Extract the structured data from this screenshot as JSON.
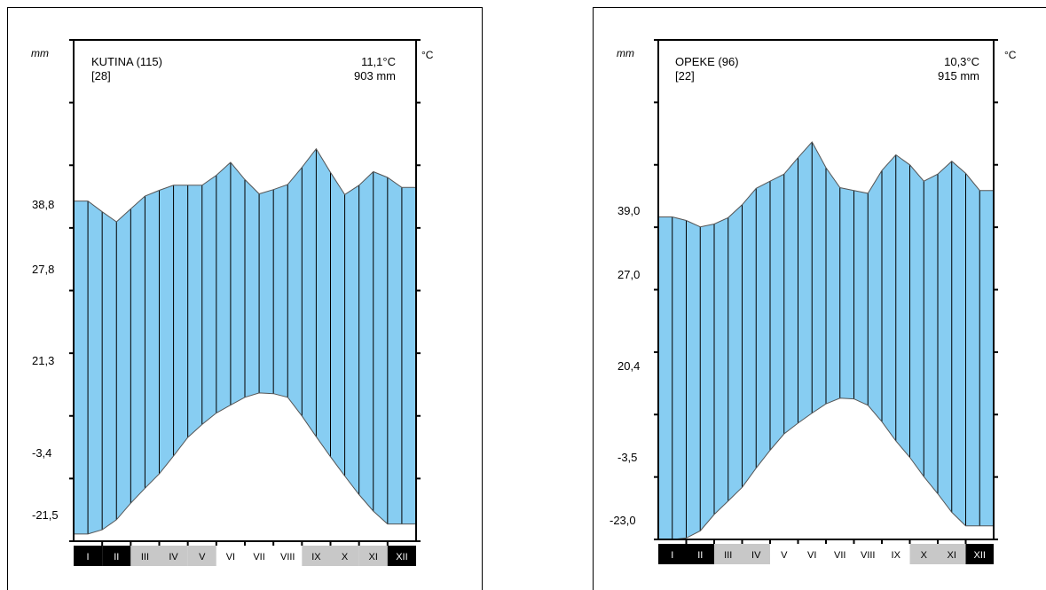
{
  "chart_data": [
    {
      "type": "area",
      "station": "KUTINA (115)",
      "years": "[28]",
      "mean_temp": "11,1°C",
      "annual_precip": "903 mm",
      "left_unit": "mm",
      "right_unit": "°C",
      "left_ticks": [
        "38,8",
        "27,8",
        "21,3",
        "-3,4",
        "-21,5"
      ],
      "months": [
        "I",
        "II",
        "III",
        "IV",
        "V",
        "VI",
        "VII",
        "VIII",
        "IX",
        "X",
        "XI",
        "XII"
      ],
      "month_colors": [
        "#000000",
        "#000000",
        "#c8c8c8",
        "#c8c8c8",
        "#c8c8c8",
        "#ffffff",
        "#ffffff",
        "#ffffff",
        "#c8c8c8",
        "#c8c8c8",
        "#c8c8c8",
        "#000000"
      ],
      "upper_x": [
        0,
        0.5,
        1,
        1.5,
        2,
        2.5,
        3,
        3.5,
        4,
        4.5,
        5,
        5.5,
        6,
        6.5,
        7,
        7.5,
        8,
        8.5,
        9,
        9.5,
        10,
        10.5,
        11,
        11.5,
        12
      ],
      "upper_y": [
        22.5,
        22.5,
        21.0,
        19.6,
        21.4,
        23.2,
        24.0,
        24.7,
        24.7,
        24.7,
        26.1,
        27.9,
        25.5,
        23.5,
        24.1,
        24.8,
        27.2,
        29.8,
        26.5,
        23.4,
        24.7,
        26.6,
        25.8,
        24.4,
        24.4
      ],
      "lower_x": [
        0,
        0.5,
        1,
        1.5,
        2,
        2.5,
        3,
        3.5,
        4,
        4.5,
        5,
        5.5,
        6,
        6.5,
        7,
        7.5,
        8,
        8.5,
        9,
        9.5,
        10,
        10.5,
        11,
        11.5,
        12
      ],
      "lower_y": [
        -24.0,
        -24.0,
        -23.4,
        -22.0,
        -19.7,
        -17.6,
        -15.6,
        -13.1,
        -10.5,
        -8.7,
        -7.1,
        -6.0,
        -4.9,
        -4.3,
        -4.4,
        -4.9,
        -7.5,
        -10.4,
        -13.2,
        -15.9,
        -18.5,
        -20.8,
        -22.6,
        -22.6,
        -22.6
      ],
      "xlim": [
        0,
        12
      ],
      "ylim": [
        -25,
        45
      ]
    },
    {
      "type": "area",
      "station": "OPEKE (96)",
      "years": "[22]",
      "mean_temp": "10,3°C",
      "annual_precip": "915 mm",
      "left_unit": "mm",
      "right_unit": "°C",
      "left_ticks": [
        "39,0",
        "27,0",
        "20,4",
        "-3,5",
        "-23,0"
      ],
      "months": [
        "I",
        "II",
        "III",
        "IV",
        "V",
        "VI",
        "VII",
        "VIII",
        "IX",
        "X",
        "XI",
        "XII"
      ],
      "month_colors": [
        "#000000",
        "#000000",
        "#c8c8c8",
        "#c8c8c8",
        "#ffffff",
        "#ffffff",
        "#ffffff",
        "#ffffff",
        "#ffffff",
        "#c8c8c8",
        "#c8c8c8",
        "#000000"
      ],
      "upper_x": [
        0,
        0.5,
        1,
        1.5,
        2,
        2.5,
        3,
        3.5,
        4,
        4.5,
        5,
        5.5,
        6,
        6.5,
        7,
        7.5,
        8,
        8.5,
        9,
        9.5,
        10,
        10.5,
        11,
        11.5,
        12
      ],
      "upper_y": [
        20.2,
        20.2,
        19.7,
        18.8,
        19.2,
        20.1,
        21.9,
        24.2,
        25.2,
        26.2,
        28.5,
        30.7,
        27.1,
        24.3,
        23.9,
        23.5,
        26.7,
        28.9,
        27.5,
        25.2,
        26.2,
        28.0,
        26.3,
        23.9,
        23.9
      ],
      "lower_x": [
        0,
        0.5,
        1,
        1.5,
        2,
        2.5,
        3,
        3.5,
        4,
        4.5,
        5,
        5.5,
        6,
        6.5,
        7,
        7.5,
        8,
        8.5,
        9,
        9.5,
        10,
        10.5,
        11,
        11.5,
        12
      ],
      "lower_y": [
        -25.0,
        -25.0,
        -24.8,
        -23.8,
        -21.5,
        -19.6,
        -17.7,
        -15.0,
        -12.5,
        -10.2,
        -8.7,
        -7.3,
        -6.0,
        -5.2,
        -5.3,
        -6.2,
        -8.5,
        -11.2,
        -13.5,
        -16.2,
        -18.6,
        -21.2,
        -23.1,
        -23.1,
        -23.1
      ],
      "xlim": [
        0,
        12
      ],
      "ylim": [
        -25,
        45
      ]
    }
  ],
  "style": {
    "fill_color": "#87cdf2",
    "frame_color": "#000000",
    "outline_color": "#555555",
    "baseline_color": "#1a6fd9"
  }
}
